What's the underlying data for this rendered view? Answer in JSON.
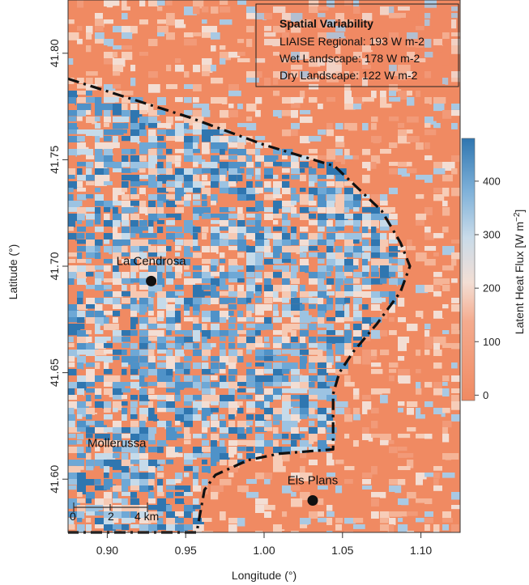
{
  "map": {
    "x_axis": {
      "label": "Longitude (°)",
      "ticks": [
        "0.90",
        "0.95",
        "1.00",
        "1.05",
        "1.10"
      ],
      "range": [
        0.875,
        1.125
      ]
    },
    "y_axis": {
      "label": "Latitude (°)",
      "ticks": [
        "41.60",
        "41.65",
        "41.70",
        "41.75",
        "41.80"
      ],
      "range": [
        41.575,
        41.825
      ]
    },
    "info_box": {
      "title": "Spatial Variability",
      "rows": [
        "LIAISE Regional:  193 W m-2",
        "Wet Landscape:  178 W m-2",
        "Dry Landscape:  122 W m-2"
      ]
    },
    "places": [
      {
        "name": "La Cendrosa",
        "lon": 0.928,
        "lat": 41.693,
        "marker": true
      },
      {
        "name": "Els Plans",
        "lon": 1.031,
        "lat": 41.59,
        "marker": true
      },
      {
        "name": "Mollerussa",
        "lon": 0.89,
        "lat": 41.617,
        "marker": false
      }
    ],
    "scale_bar": {
      "ticks": [
        "0",
        "2",
        "4 km"
      ]
    },
    "colorbar": {
      "label": "Latent Heat Flux [W m",
      "label_superscript": "−2",
      "label_close": "]",
      "ticks": [
        "0",
        "100",
        "200",
        "300",
        "400"
      ],
      "tick_values": [
        0,
        100,
        200,
        300,
        400
      ],
      "range": [
        -10,
        480
      ]
    },
    "colors": {
      "dry": "#f08a62",
      "neutral": "#f3ded4",
      "wet": "#4f92c8",
      "wet_dark": "#2f76b0"
    },
    "irrigated_boundary_lonlat": [
      [
        0.875,
        41.788
      ],
      [
        0.952,
        41.77
      ],
      [
        1.0,
        41.757
      ],
      [
        1.045,
        41.747
      ],
      [
        1.075,
        41.726
      ],
      [
        1.087,
        41.711
      ],
      [
        1.093,
        41.7
      ],
      [
        1.087,
        41.688
      ],
      [
        1.072,
        41.673
      ],
      [
        1.057,
        41.66
      ],
      [
        1.048,
        41.65
      ],
      [
        1.044,
        41.64
      ],
      [
        1.044,
        41.614
      ],
      [
        1.01,
        41.612
      ],
      [
        0.99,
        41.609
      ],
      [
        0.969,
        41.602
      ],
      [
        0.962,
        41.595
      ],
      [
        0.957,
        41.575
      ],
      [
        0.875,
        41.575
      ]
    ]
  }
}
